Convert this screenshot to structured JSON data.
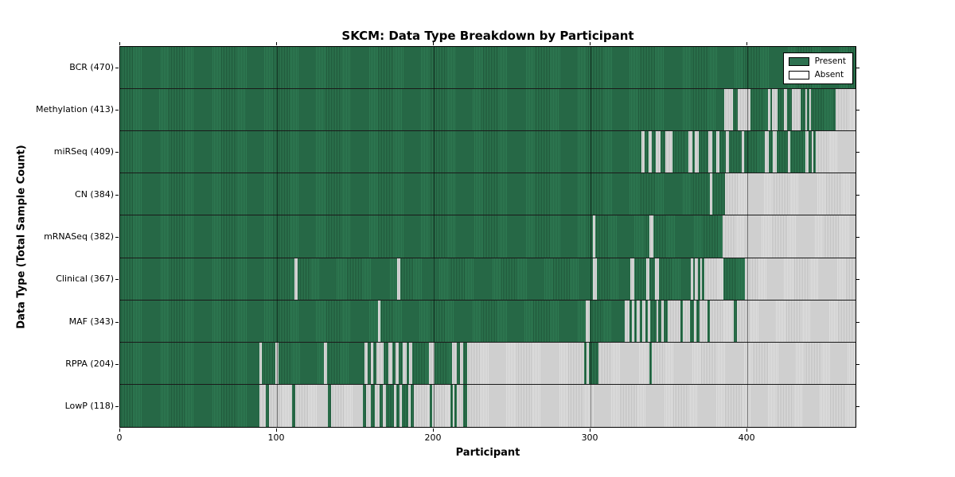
{
  "title": "SKCM: Data Type Breakdown by Participant",
  "axes": {
    "xlabel": "Participant",
    "ylabel": "Data Type (Total Sample Count)"
  },
  "legend": {
    "present": "Present",
    "absent": "Absent"
  },
  "colors": {
    "present_green": "#2d7150",
    "present_green_dark": "#1f5639",
    "absent_gray": "#d6d6d6",
    "absent_gray_dark": "#c0c0c0",
    "frame": "#000000"
  },
  "chart_data": {
    "type": "heatmap",
    "title": "SKCM: Data Type Breakdown by Participant",
    "xlabel": "Participant",
    "ylabel": "Data Type (Total Sample Count)",
    "legend_entries": [
      "Present",
      "Absent"
    ],
    "legend_position": "upper right",
    "grid": "vertical major ticks only",
    "x_range": [
      0,
      470
    ],
    "x_ticks": [
      0,
      100,
      200,
      300,
      400
    ],
    "segment_states": {
      "p": "Present",
      "a": "Absent"
    },
    "rows": [
      {
        "label": "BCR (470)",
        "name": "BCR",
        "count": 470,
        "segments": [
          [
            0,
            470,
            "p"
          ]
        ]
      },
      {
        "label": "Methylation (413)",
        "name": "Methylation",
        "count": 413,
        "segments": [
          [
            0,
            386,
            "p"
          ],
          [
            386,
            391.5,
            "a"
          ],
          [
            391.5,
            394.5,
            "p"
          ],
          [
            394.5,
            403,
            "a"
          ],
          [
            403,
            414,
            "p"
          ],
          [
            414,
            415.5,
            "a"
          ],
          [
            415.5,
            416.5,
            "p"
          ],
          [
            416.5,
            420,
            "a"
          ],
          [
            420,
            424,
            "p"
          ],
          [
            424,
            426.5,
            "a"
          ],
          [
            426.5,
            429.5,
            "p"
          ],
          [
            429.5,
            435,
            "a"
          ],
          [
            435,
            438,
            "p"
          ],
          [
            438,
            439,
            "a"
          ],
          [
            439,
            440.5,
            "p"
          ],
          [
            440.5,
            441.5,
            "a"
          ],
          [
            441.5,
            457.5,
            "p"
          ],
          [
            457.5,
            470,
            "a"
          ]
        ]
      },
      {
        "label": "miRSeq (409)",
        "name": "miRSeq",
        "count": 409,
        "segments": [
          [
            0,
            333,
            "p"
          ],
          [
            333,
            335,
            "a"
          ],
          [
            335,
            337.5,
            "p"
          ],
          [
            337.5,
            340,
            "a"
          ],
          [
            340,
            342.5,
            "p"
          ],
          [
            342.5,
            345.5,
            "a"
          ],
          [
            345.5,
            348.5,
            "p"
          ],
          [
            348.5,
            353,
            "a"
          ],
          [
            353,
            363,
            "p"
          ],
          [
            363,
            365.5,
            "a"
          ],
          [
            365.5,
            367.5,
            "p"
          ],
          [
            367.5,
            370,
            "a"
          ],
          [
            370,
            376,
            "p"
          ],
          [
            376,
            378.5,
            "a"
          ],
          [
            378.5,
            381,
            "p"
          ],
          [
            381,
            383,
            "a"
          ],
          [
            383,
            387,
            "p"
          ],
          [
            387,
            389,
            "a"
          ],
          [
            389,
            397.5,
            "p"
          ],
          [
            397.5,
            399,
            "a"
          ],
          [
            399,
            412,
            "p"
          ],
          [
            412,
            414.5,
            "a"
          ],
          [
            414.5,
            417,
            "p"
          ],
          [
            417,
            419.5,
            "a"
          ],
          [
            419.5,
            427,
            "p"
          ],
          [
            427,
            428.5,
            "a"
          ],
          [
            428.5,
            438,
            "p"
          ],
          [
            438,
            440,
            "a"
          ],
          [
            440,
            442,
            "p"
          ],
          [
            442,
            443,
            "a"
          ],
          [
            443,
            444.5,
            "p"
          ],
          [
            444.5,
            470,
            "a"
          ]
        ]
      },
      {
        "label": "CN (384)",
        "name": "CN",
        "count": 384,
        "segments": [
          [
            0,
            377,
            "p"
          ],
          [
            377,
            378.5,
            "a"
          ],
          [
            378.5,
            386.5,
            "p"
          ],
          [
            386.5,
            470,
            "a"
          ]
        ]
      },
      {
        "label": "mRNASeq (382)",
        "name": "mRNASeq",
        "count": 382,
        "segments": [
          [
            0,
            302,
            "p"
          ],
          [
            302,
            303.5,
            "a"
          ],
          [
            303.5,
            338.5,
            "p"
          ],
          [
            338.5,
            341,
            "a"
          ],
          [
            341,
            385,
            "p"
          ],
          [
            385,
            470,
            "a"
          ]
        ]
      },
      {
        "label": "Clinical (367)",
        "name": "Clinical",
        "count": 367,
        "segments": [
          [
            0,
            111.5,
            "p"
          ],
          [
            111.5,
            113.5,
            "a"
          ],
          [
            113.5,
            177,
            "p"
          ],
          [
            177,
            179,
            "a"
          ],
          [
            179,
            302,
            "p"
          ],
          [
            302,
            304.5,
            "a"
          ],
          [
            304.5,
            326,
            "p"
          ],
          [
            326,
            328.5,
            "a"
          ],
          [
            328.5,
            336,
            "p"
          ],
          [
            336,
            338.5,
            "a"
          ],
          [
            338.5,
            342,
            "p"
          ],
          [
            342,
            344.5,
            "a"
          ],
          [
            344.5,
            364.5,
            "p"
          ],
          [
            364.5,
            366,
            "a"
          ],
          [
            366,
            367.5,
            "p"
          ],
          [
            367.5,
            369.5,
            "a"
          ],
          [
            369.5,
            371,
            "p"
          ],
          [
            371,
            372,
            "a"
          ],
          [
            372,
            373.5,
            "p"
          ],
          [
            373.5,
            385.5,
            "a"
          ],
          [
            385.5,
            399.5,
            "p"
          ],
          [
            399.5,
            470,
            "a"
          ]
        ]
      },
      {
        "label": "MAF (343)",
        "name": "MAF",
        "count": 343,
        "segments": [
          [
            0,
            165,
            "p"
          ],
          [
            165,
            166.5,
            "a"
          ],
          [
            166.5,
            297.5,
            "p"
          ],
          [
            297.5,
            300,
            "a"
          ],
          [
            300,
            322.5,
            "p"
          ],
          [
            322.5,
            325.5,
            "a"
          ],
          [
            325.5,
            327,
            "p"
          ],
          [
            327,
            328.5,
            "a"
          ],
          [
            328.5,
            330,
            "p"
          ],
          [
            330,
            332,
            "a"
          ],
          [
            332,
            333.5,
            "p"
          ],
          [
            333.5,
            335.5,
            "a"
          ],
          [
            335.5,
            337,
            "p"
          ],
          [
            337,
            339,
            "a"
          ],
          [
            339,
            343,
            "p"
          ],
          [
            343,
            344,
            "a"
          ],
          [
            344,
            346,
            "p"
          ],
          [
            346,
            347.5,
            "a"
          ],
          [
            347.5,
            350,
            "p"
          ],
          [
            350,
            358,
            "a"
          ],
          [
            358,
            359.5,
            "p"
          ],
          [
            359.5,
            364,
            "a"
          ],
          [
            364,
            366.5,
            "p"
          ],
          [
            366.5,
            368.5,
            "a"
          ],
          [
            368.5,
            370.5,
            "p"
          ],
          [
            370.5,
            375.5,
            "a"
          ],
          [
            375.5,
            377,
            "p"
          ],
          [
            377,
            392,
            "a"
          ],
          [
            392,
            394,
            "p"
          ],
          [
            394,
            470,
            "a"
          ]
        ]
      },
      {
        "label": "RPPA (204)",
        "name": "RPPA",
        "count": 204,
        "segments": [
          [
            0,
            89,
            "p"
          ],
          [
            89,
            90.5,
            "a"
          ],
          [
            90.5,
            99,
            "p"
          ],
          [
            99,
            101,
            "a"
          ],
          [
            101,
            130,
            "p"
          ],
          [
            130,
            132.5,
            "a"
          ],
          [
            132.5,
            156,
            "p"
          ],
          [
            156,
            158,
            "a"
          ],
          [
            158,
            160,
            "p"
          ],
          [
            160,
            162,
            "a"
          ],
          [
            162,
            164,
            "p"
          ],
          [
            164,
            168.5,
            "a"
          ],
          [
            168.5,
            171.5,
            "p"
          ],
          [
            171.5,
            174,
            "a"
          ],
          [
            174,
            176,
            "p"
          ],
          [
            176,
            178,
            "a"
          ],
          [
            178,
            180.5,
            "p"
          ],
          [
            180.5,
            183,
            "a"
          ],
          [
            183,
            184.5,
            "p"
          ],
          [
            184.5,
            186.5,
            "a"
          ],
          [
            186.5,
            197.5,
            "p"
          ],
          [
            197.5,
            201,
            "a"
          ],
          [
            201,
            212,
            "p"
          ],
          [
            212,
            215,
            "a"
          ],
          [
            215,
            217,
            "p"
          ],
          [
            217,
            219,
            "a"
          ],
          [
            219,
            222,
            "p"
          ],
          [
            222,
            296.5,
            "a"
          ],
          [
            296.5,
            298,
            "p"
          ],
          [
            298,
            299.5,
            "a"
          ],
          [
            299.5,
            305.5,
            "p"
          ],
          [
            305.5,
            338.5,
            "a"
          ],
          [
            338.5,
            340,
            "p"
          ],
          [
            340,
            470,
            "a"
          ]
        ]
      },
      {
        "label": "LowP (118)",
        "name": "LowP",
        "count": 118,
        "segments": [
          [
            0,
            89,
            "p"
          ],
          [
            89,
            93,
            "a"
          ],
          [
            93,
            95,
            "p"
          ],
          [
            95,
            110,
            "a"
          ],
          [
            110,
            112,
            "p"
          ],
          [
            112,
            133,
            "a"
          ],
          [
            133,
            135,
            "p"
          ],
          [
            135,
            155,
            "a"
          ],
          [
            155,
            157,
            "p"
          ],
          [
            157,
            160,
            "a"
          ],
          [
            160,
            163,
            "p"
          ],
          [
            163,
            166,
            "a"
          ],
          [
            166,
            168,
            "p"
          ],
          [
            168,
            170,
            "a"
          ],
          [
            170,
            175,
            "p"
          ],
          [
            175,
            176.5,
            "a"
          ],
          [
            176.5,
            178.5,
            "p"
          ],
          [
            178.5,
            180,
            "a"
          ],
          [
            180,
            184,
            "p"
          ],
          [
            184,
            185.5,
            "a"
          ],
          [
            185.5,
            187.5,
            "p"
          ],
          [
            187.5,
            198,
            "a"
          ],
          [
            198,
            199.5,
            "p"
          ],
          [
            199.5,
            211,
            "a"
          ],
          [
            211,
            212.5,
            "p"
          ],
          [
            212.5,
            213.5,
            "a"
          ],
          [
            213.5,
            215,
            "p"
          ],
          [
            215,
            219,
            "a"
          ],
          [
            219,
            222,
            "p"
          ],
          [
            222,
            470,
            "a"
          ]
        ]
      }
    ]
  }
}
